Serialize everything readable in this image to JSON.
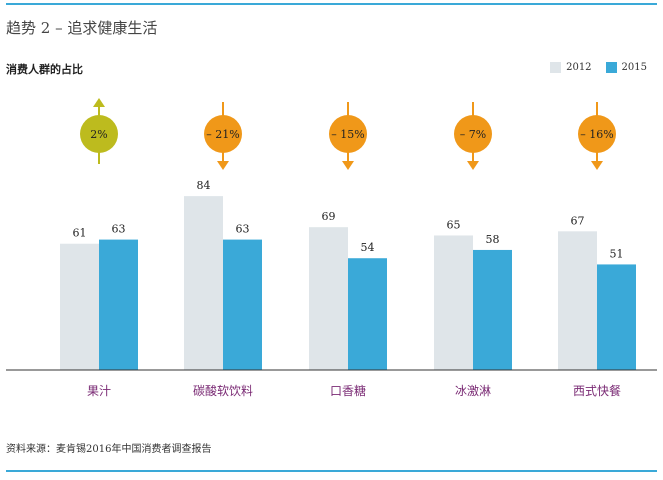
{
  "heading": "趋势 2 – 追求健康生活",
  "subtitle": "消费人群的占比",
  "source": "资料来源：麦肯锡2016年中国消费者调查报告",
  "colors": {
    "accent": "#3aa9d8",
    "bar_2012": "#dfe5e9",
    "bar_2015": "#3aa9d8",
    "change_up": "#bdbb1e",
    "change_down": "#f09819",
    "category_label": "#7a2a74"
  },
  "legend": [
    {
      "label": "2012",
      "color": "#dfe5e9"
    },
    {
      "label": "2015",
      "color": "#3aa9d8"
    }
  ],
  "chart_data": {
    "type": "bar",
    "categories": [
      "果汁",
      "碳酸软饮料",
      "口香糖",
      "冰激淋",
      "西式快餐"
    ],
    "series": [
      {
        "name": "2012",
        "values": [
          61,
          84,
          69,
          65,
          67
        ]
      },
      {
        "name": "2015",
        "values": [
          63,
          63,
          54,
          58,
          51
        ]
      }
    ],
    "changes": [
      "2%",
      "– 21%",
      "– 15%",
      "– 7%",
      "– 16%"
    ],
    "change_direction": [
      "up",
      "down",
      "down",
      "down",
      "down"
    ],
    "ylim": [
      0,
      100
    ],
    "grid": false
  }
}
